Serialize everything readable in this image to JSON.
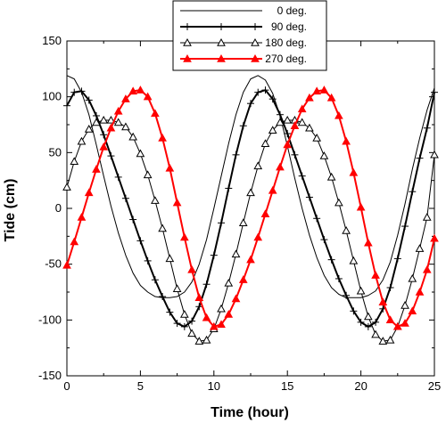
{
  "chart_data": {
    "type": "line",
    "xlabel": "Time (hour)",
    "ylabel": "Tide (cm)",
    "xlim": [
      0,
      25
    ],
    "ylim": [
      -150,
      150
    ],
    "xticks": [
      0,
      5,
      10,
      15,
      20,
      25
    ],
    "yticks": [
      -150,
      -100,
      -50,
      0,
      50,
      100,
      150
    ],
    "grid": false,
    "legend": "top-center",
    "series": [
      {
        "name": "0 deg.",
        "color": "#000000",
        "marker": "none",
        "x": [
          0,
          0.5,
          1,
          1.5,
          2,
          2.5,
          3,
          3.5,
          4,
          4.5,
          5,
          5.5,
          6,
          6.5,
          7,
          7.5,
          8,
          8.5,
          9,
          9.5,
          10,
          10.5,
          11,
          11.5,
          12,
          12.5,
          13,
          13.5,
          14,
          14.5,
          15,
          15.5,
          16,
          16.5,
          17,
          17.5,
          18,
          18.5,
          19,
          19.5,
          20,
          20.5,
          21,
          21.5,
          22,
          22.5,
          23,
          23.5,
          24,
          24.5,
          25
        ],
        "y": [
          119,
          116,
          104,
          84,
          57,
          29,
          2,
          -22,
          -42,
          -58,
          -69,
          -75,
          -79,
          -80,
          -80,
          -79,
          -75,
          -66,
          -50,
          -28,
          0,
          29,
          58,
          84,
          104,
          116,
          119,
          115,
          103,
          83,
          56,
          27,
          0,
          -24,
          -44,
          -60,
          -71,
          -77,
          -80,
          -80,
          -80,
          -78,
          -74,
          -64,
          -48,
          -24,
          4,
          35,
          63,
          88,
          108
        ]
      },
      {
        "name": "90 deg.",
        "color": "#000000",
        "marker": "plus",
        "x": [
          0,
          0.5,
          1,
          1.5,
          2,
          2.5,
          3,
          3.5,
          4,
          4.5,
          5,
          5.5,
          6,
          6.5,
          7,
          7.5,
          8,
          8.5,
          9,
          9.5,
          10,
          10.5,
          11,
          11.5,
          12,
          12.5,
          13,
          13.5,
          14,
          14.5,
          15,
          15.5,
          16,
          16.5,
          17,
          17.5,
          18,
          18.5,
          19,
          19.5,
          20,
          20.5,
          21,
          21.5,
          22,
          22.5,
          23,
          23.5,
          24,
          24.5,
          25
        ],
        "y": [
          92,
          104,
          105,
          97,
          83,
          66,
          47,
          28,
          9,
          -10,
          -29,
          -47,
          -64,
          -79,
          -93,
          -103,
          -106,
          -101,
          -88,
          -68,
          -42,
          -13,
          18,
          48,
          74,
          94,
          104,
          106,
          98,
          84,
          67,
          48,
          29,
          10,
          -9,
          -28,
          -46,
          -63,
          -78,
          -92,
          -102,
          -106,
          -102,
          -90,
          -71,
          -45,
          -16,
          15,
          45,
          72,
          104
        ]
      },
      {
        "name": "180 deg.",
        "color": "#000000",
        "marker": "triangle-open",
        "x": [
          0,
          0.5,
          1,
          1.5,
          2,
          2.5,
          3,
          3.5,
          4,
          4.5,
          5,
          5.5,
          6,
          6.5,
          7,
          7.5,
          8,
          8.5,
          9,
          9.5,
          10,
          10.5,
          11,
          11.5,
          12,
          12.5,
          13,
          13.5,
          14,
          14.5,
          15,
          15.5,
          16,
          16.5,
          17,
          17.5,
          18,
          18.5,
          19,
          19.5,
          20,
          20.5,
          21,
          21.5,
          22,
          22.5,
          23,
          23.5,
          24,
          24.5,
          25
        ],
        "y": [
          19,
          42,
          60,
          71,
          77,
          79,
          79,
          77,
          73,
          64,
          49,
          30,
          7,
          -18,
          -45,
          -72,
          -95,
          -112,
          -119,
          -118,
          -108,
          -90,
          -67,
          -41,
          -13,
          14,
          38,
          58,
          70,
          77,
          79,
          79,
          77,
          72,
          63,
          47,
          28,
          5,
          -20,
          -47,
          -74,
          -97,
          -113,
          -119,
          -118,
          -106,
          -87,
          -63,
          -36,
          -8,
          48
        ]
      },
      {
        "name": "270 deg.",
        "color": "#ff0000",
        "marker": "triangle-filled",
        "x": [
          0,
          0.5,
          1,
          1.5,
          2,
          2.5,
          3,
          3.5,
          4,
          4.5,
          5,
          5.5,
          6,
          6.5,
          7,
          7.5,
          8,
          8.5,
          9,
          9.5,
          10,
          10.5,
          11,
          11.5,
          12,
          12.5,
          13,
          13.5,
          14,
          14.5,
          15,
          15.5,
          16,
          16.5,
          17,
          17.5,
          18,
          18.5,
          19,
          19.5,
          20,
          20.5,
          21,
          21.5,
          22,
          22.5,
          23,
          23.5,
          24,
          24.5,
          25
        ],
        "y": [
          -51,
          -30,
          -8,
          14,
          35,
          55,
          72,
          87,
          98,
          105,
          106,
          100,
          85,
          63,
          36,
          5,
          -26,
          -55,
          -80,
          -98,
          -106,
          -104,
          -95,
          -81,
          -64,
          -46,
          -26,
          -5,
          16,
          37,
          57,
          74,
          89,
          99,
          105,
          106,
          99,
          83,
          60,
          32,
          1,
          -31,
          -60,
          -84,
          -100,
          -106,
          -103,
          -92,
          -75,
          -55,
          -27
        ]
      }
    ]
  }
}
